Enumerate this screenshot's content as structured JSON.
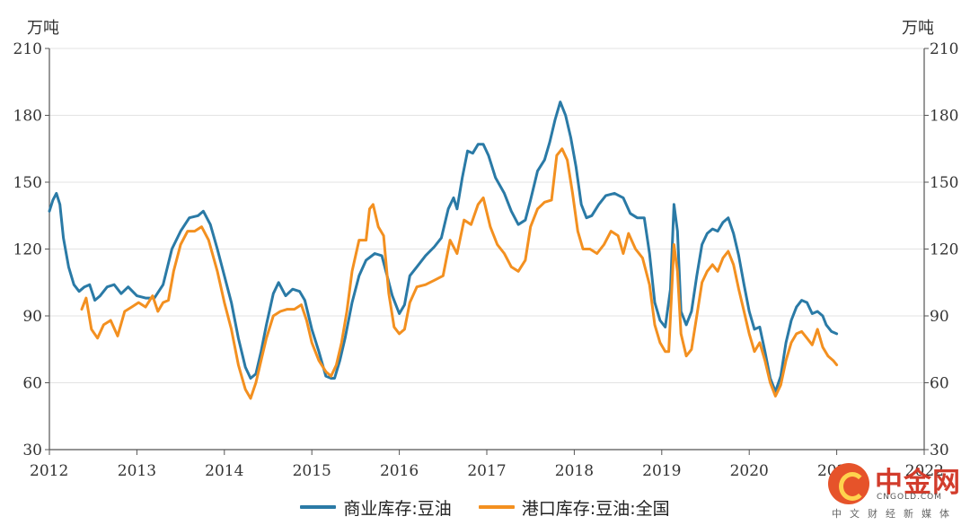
{
  "chart_data": {
    "type": "line",
    "unit_left": "万吨",
    "unit_right": "万吨",
    "ylim": [
      30,
      210
    ],
    "y_ticks": [
      30,
      60,
      90,
      120,
      150,
      180,
      210
    ],
    "xlim": [
      2012,
      2022
    ],
    "x_ticks": [
      "2012",
      "2013",
      "2014",
      "2015",
      "2016",
      "2017",
      "2018",
      "2019",
      "2020",
      "2021",
      "2022"
    ],
    "grid": true,
    "legend_position": "bottom",
    "series": [
      {
        "name": "商业库存:豆油",
        "color": "#2a7aa6",
        "points": [
          [
            2012.0,
            137
          ],
          [
            2012.04,
            142
          ],
          [
            2012.08,
            145
          ],
          [
            2012.12,
            140
          ],
          [
            2012.16,
            125
          ],
          [
            2012.22,
            112
          ],
          [
            2012.28,
            104
          ],
          [
            2012.34,
            101
          ],
          [
            2012.4,
            103
          ],
          [
            2012.46,
            104
          ],
          [
            2012.52,
            97
          ],
          [
            2012.58,
            99
          ],
          [
            2012.66,
            103
          ],
          [
            2012.74,
            104
          ],
          [
            2012.82,
            100
          ],
          [
            2012.9,
            103
          ],
          [
            2013.0,
            99
          ],
          [
            2013.1,
            98
          ],
          [
            2013.2,
            98
          ],
          [
            2013.3,
            104
          ],
          [
            2013.4,
            120
          ],
          [
            2013.5,
            128
          ],
          [
            2013.6,
            134
          ],
          [
            2013.7,
            135
          ],
          [
            2013.76,
            137
          ],
          [
            2013.84,
            131
          ],
          [
            2013.92,
            120
          ],
          [
            2014.0,
            108
          ],
          [
            2014.08,
            96
          ],
          [
            2014.16,
            80
          ],
          [
            2014.24,
            67
          ],
          [
            2014.3,
            62
          ],
          [
            2014.36,
            64
          ],
          [
            2014.42,
            74
          ],
          [
            2014.48,
            86
          ],
          [
            2014.56,
            100
          ],
          [
            2014.62,
            105
          ],
          [
            2014.7,
            99
          ],
          [
            2014.78,
            102
          ],
          [
            2014.86,
            101
          ],
          [
            2014.92,
            97
          ],
          [
            2015.0,
            84
          ],
          [
            2015.08,
            74
          ],
          [
            2015.16,
            63
          ],
          [
            2015.22,
            62
          ],
          [
            2015.26,
            62
          ],
          [
            2015.32,
            70
          ],
          [
            2015.38,
            80
          ],
          [
            2015.46,
            96
          ],
          [
            2015.54,
            108
          ],
          [
            2015.62,
            115
          ],
          [
            2015.72,
            118
          ],
          [
            2015.8,
            117
          ],
          [
            2015.86,
            108
          ],
          [
            2015.92,
            99
          ],
          [
            2016.0,
            91
          ],
          [
            2016.06,
            95
          ],
          [
            2016.12,
            108
          ],
          [
            2016.2,
            112
          ],
          [
            2016.3,
            117
          ],
          [
            2016.4,
            121
          ],
          [
            2016.48,
            125
          ],
          [
            2016.56,
            138
          ],
          [
            2016.62,
            143
          ],
          [
            2016.66,
            138
          ],
          [
            2016.72,
            152
          ],
          [
            2016.78,
            164
          ],
          [
            2016.84,
            163
          ],
          [
            2016.9,
            167
          ],
          [
            2016.96,
            167
          ],
          [
            2017.02,
            162
          ],
          [
            2017.1,
            152
          ],
          [
            2017.2,
            145
          ],
          [
            2017.28,
            137
          ],
          [
            2017.36,
            131
          ],
          [
            2017.44,
            133
          ],
          [
            2017.5,
            142
          ],
          [
            2017.58,
            155
          ],
          [
            2017.66,
            160
          ],
          [
            2017.72,
            168
          ],
          [
            2017.78,
            178
          ],
          [
            2017.84,
            186
          ],
          [
            2017.9,
            180
          ],
          [
            2017.96,
            170
          ],
          [
            2018.02,
            157
          ],
          [
            2018.08,
            140
          ],
          [
            2018.14,
            134
          ],
          [
            2018.2,
            135
          ],
          [
            2018.28,
            140
          ],
          [
            2018.36,
            144
          ],
          [
            2018.46,
            145
          ],
          [
            2018.56,
            143
          ],
          [
            2018.64,
            136
          ],
          [
            2018.72,
            134
          ],
          [
            2018.8,
            134
          ],
          [
            2018.86,
            118
          ],
          [
            2018.92,
            96
          ],
          [
            2018.98,
            88
          ],
          [
            2019.04,
            85
          ],
          [
            2019.1,
            102
          ],
          [
            2019.14,
            140
          ],
          [
            2019.18,
            128
          ],
          [
            2019.22,
            92
          ],
          [
            2019.28,
            86
          ],
          [
            2019.34,
            92
          ],
          [
            2019.4,
            108
          ],
          [
            2019.46,
            122
          ],
          [
            2019.52,
            127
          ],
          [
            2019.58,
            129
          ],
          [
            2019.64,
            128
          ],
          [
            2019.7,
            132
          ],
          [
            2019.76,
            134
          ],
          [
            2019.82,
            127
          ],
          [
            2019.88,
            117
          ],
          [
            2019.94,
            104
          ],
          [
            2020.0,
            92
          ],
          [
            2020.06,
            84
          ],
          [
            2020.12,
            85
          ],
          [
            2020.18,
            74
          ],
          [
            2020.24,
            62
          ],
          [
            2020.3,
            56
          ],
          [
            2020.36,
            63
          ],
          [
            2020.42,
            78
          ],
          [
            2020.48,
            88
          ],
          [
            2020.54,
            94
          ],
          [
            2020.6,
            97
          ],
          [
            2020.66,
            96
          ],
          [
            2020.72,
            91
          ],
          [
            2020.78,
            92
          ],
          [
            2020.84,
            90
          ],
          [
            2020.88,
            86
          ],
          [
            2020.94,
            83
          ],
          [
            2021.0,
            82
          ]
        ]
      },
      {
        "name": "港口库存:豆油:全国",
        "color": "#f39020",
        "points": [
          [
            2012.37,
            93
          ],
          [
            2012.42,
            98
          ],
          [
            2012.48,
            84
          ],
          [
            2012.55,
            80
          ],
          [
            2012.62,
            86
          ],
          [
            2012.7,
            88
          ],
          [
            2012.78,
            81
          ],
          [
            2012.86,
            92
          ],
          [
            2012.94,
            94
          ],
          [
            2013.02,
            96
          ],
          [
            2013.1,
            94
          ],
          [
            2013.18,
            99
          ],
          [
            2013.24,
            92
          ],
          [
            2013.3,
            96
          ],
          [
            2013.36,
            97
          ],
          [
            2013.42,
            110
          ],
          [
            2013.5,
            122
          ],
          [
            2013.58,
            128
          ],
          [
            2013.66,
            128
          ],
          [
            2013.74,
            130
          ],
          [
            2013.82,
            124
          ],
          [
            2013.92,
            110
          ],
          [
            2014.0,
            96
          ],
          [
            2014.08,
            84
          ],
          [
            2014.16,
            68
          ],
          [
            2014.24,
            57
          ],
          [
            2014.3,
            53
          ],
          [
            2014.36,
            60
          ],
          [
            2014.42,
            70
          ],
          [
            2014.48,
            80
          ],
          [
            2014.56,
            90
          ],
          [
            2014.64,
            92
          ],
          [
            2014.72,
            93
          ],
          [
            2014.8,
            93
          ],
          [
            2014.88,
            95
          ],
          [
            2014.94,
            88
          ],
          [
            2015.0,
            78
          ],
          [
            2015.08,
            70
          ],
          [
            2015.16,
            65
          ],
          [
            2015.22,
            63
          ],
          [
            2015.28,
            68
          ],
          [
            2015.34,
            78
          ],
          [
            2015.4,
            92
          ],
          [
            2015.46,
            110
          ],
          [
            2015.54,
            124
          ],
          [
            2015.62,
            124
          ],
          [
            2015.66,
            138
          ],
          [
            2015.7,
            140
          ],
          [
            2015.76,
            130
          ],
          [
            2015.82,
            126
          ],
          [
            2015.88,
            100
          ],
          [
            2015.94,
            85
          ],
          [
            2016.0,
            82
          ],
          [
            2016.06,
            84
          ],
          [
            2016.12,
            96
          ],
          [
            2016.2,
            103
          ],
          [
            2016.3,
            104
          ],
          [
            2016.4,
            106
          ],
          [
            2016.5,
            108
          ],
          [
            2016.58,
            124
          ],
          [
            2016.66,
            118
          ],
          [
            2016.74,
            133
          ],
          [
            2016.82,
            131
          ],
          [
            2016.9,
            140
          ],
          [
            2016.96,
            143
          ],
          [
            2017.04,
            130
          ],
          [
            2017.12,
            122
          ],
          [
            2017.2,
            118
          ],
          [
            2017.28,
            112
          ],
          [
            2017.36,
            110
          ],
          [
            2017.44,
            115
          ],
          [
            2017.5,
            130
          ],
          [
            2017.58,
            138
          ],
          [
            2017.66,
            141
          ],
          [
            2017.74,
            142
          ],
          [
            2017.8,
            162
          ],
          [
            2017.86,
            165
          ],
          [
            2017.92,
            160
          ],
          [
            2017.98,
            145
          ],
          [
            2018.04,
            128
          ],
          [
            2018.1,
            120
          ],
          [
            2018.18,
            120
          ],
          [
            2018.26,
            118
          ],
          [
            2018.34,
            122
          ],
          [
            2018.42,
            128
          ],
          [
            2018.5,
            126
          ],
          [
            2018.56,
            118
          ],
          [
            2018.62,
            127
          ],
          [
            2018.7,
            120
          ],
          [
            2018.78,
            116
          ],
          [
            2018.86,
            104
          ],
          [
            2018.92,
            86
          ],
          [
            2018.98,
            78
          ],
          [
            2019.04,
            74
          ],
          [
            2019.08,
            74
          ],
          [
            2019.14,
            122
          ],
          [
            2019.18,
            110
          ],
          [
            2019.22,
            82
          ],
          [
            2019.28,
            72
          ],
          [
            2019.34,
            75
          ],
          [
            2019.4,
            90
          ],
          [
            2019.46,
            105
          ],
          [
            2019.52,
            110
          ],
          [
            2019.58,
            113
          ],
          [
            2019.64,
            110
          ],
          [
            2019.7,
            116
          ],
          [
            2019.76,
            119
          ],
          [
            2019.82,
            113
          ],
          [
            2019.88,
            102
          ],
          [
            2019.94,
            92
          ],
          [
            2020.0,
            82
          ],
          [
            2020.06,
            74
          ],
          [
            2020.12,
            78
          ],
          [
            2020.18,
            70
          ],
          [
            2020.24,
            60
          ],
          [
            2020.3,
            54
          ],
          [
            2020.36,
            59
          ],
          [
            2020.42,
            70
          ],
          [
            2020.48,
            78
          ],
          [
            2020.54,
            82
          ],
          [
            2020.6,
            83
          ],
          [
            2020.66,
            80
          ],
          [
            2020.72,
            77
          ],
          [
            2020.78,
            84
          ],
          [
            2020.84,
            76
          ],
          [
            2020.9,
            72
          ],
          [
            2020.96,
            70
          ],
          [
            2021.0,
            68
          ]
        ]
      }
    ]
  },
  "watermark": {
    "name_cn": "中金网",
    "domain": "CNGOLD.COM",
    "slogan": "中文财经新媒体"
  }
}
